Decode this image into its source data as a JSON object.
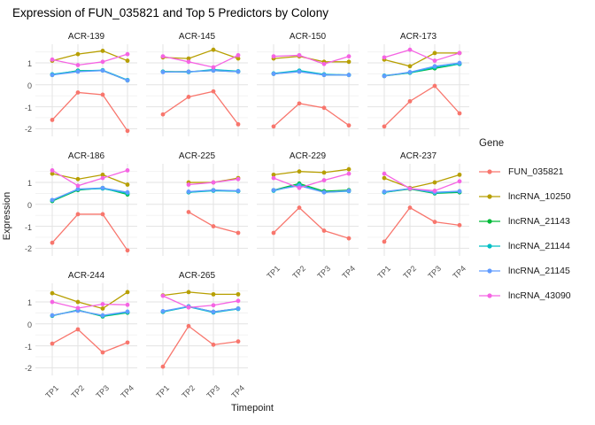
{
  "chart_data": {
    "type": "line",
    "title": "Expression of FUN_035821 and Top 5 Predictors by Colony",
    "xlabel": "Timepoint",
    "ylabel": "Expression",
    "legend_title": "Gene",
    "x": [
      "TP1",
      "TP2",
      "TP3",
      "TP4"
    ],
    "yticks": [
      1,
      0,
      -1,
      -2
    ],
    "ylim": [
      -2.35,
      1.85
    ],
    "grid": "on",
    "legend_position": "right",
    "series": [
      {
        "name": "FUN_035821",
        "color": "#F8766D"
      },
      {
        "name": "lncRNA_10250",
        "color": "#B79F00"
      },
      {
        "name": "lncRNA_21143",
        "color": "#00BA38"
      },
      {
        "name": "lncRNA_21144",
        "color": "#00BFC4"
      },
      {
        "name": "lncRNA_21145",
        "color": "#619CFF"
      },
      {
        "name": "lncRNA_43090",
        "color": "#F564E3"
      }
    ],
    "facets": [
      {
        "name": "ACR-139",
        "values": {
          "FUN_035821": [
            -1.6,
            -0.35,
            -0.45,
            -2.1
          ],
          "lncRNA_10250": [
            1.1,
            1.4,
            1.55,
            1.1
          ],
          "lncRNA_21143": [
            0.45,
            0.65,
            0.65,
            0.2
          ],
          "lncRNA_21144": [
            0.48,
            0.63,
            0.67,
            0.22
          ],
          "lncRNA_21145": [
            0.45,
            0.6,
            0.65,
            0.2
          ],
          "lncRNA_43090": [
            1.15,
            0.9,
            1.05,
            1.4
          ]
        }
      },
      {
        "name": "ACR-145",
        "values": {
          "FUN_035821": [
            -1.35,
            -0.55,
            -0.3,
            -1.8
          ],
          "lncRNA_10250": [
            1.25,
            1.2,
            1.6,
            1.2
          ],
          "lncRNA_21143": [
            0.6,
            0.6,
            0.65,
            0.6
          ],
          "lncRNA_21144": [
            0.6,
            0.58,
            0.7,
            0.62
          ],
          "lncRNA_21145": [
            0.58,
            0.6,
            0.65,
            0.6
          ],
          "lncRNA_43090": [
            1.3,
            1.05,
            0.8,
            1.35
          ]
        }
      },
      {
        "name": "ACR-150",
        "values": {
          "FUN_035821": [
            -1.9,
            -0.85,
            -1.05,
            -1.85
          ],
          "lncRNA_10250": [
            1.2,
            1.3,
            1.05,
            1.05
          ],
          "lncRNA_21143": [
            0.5,
            0.62,
            0.45,
            0.45
          ],
          "lncRNA_21144": [
            0.52,
            0.65,
            0.48,
            0.45
          ],
          "lncRNA_21145": [
            0.5,
            0.6,
            0.45,
            0.45
          ],
          "lncRNA_43090": [
            1.3,
            1.35,
            0.95,
            1.3
          ]
        }
      },
      {
        "name": "ACR-173",
        "values": {
          "FUN_035821": [
            -1.9,
            -0.75,
            -0.05,
            -1.3
          ],
          "lncRNA_10250": [
            1.15,
            0.85,
            1.45,
            1.45
          ],
          "lncRNA_21143": [
            0.4,
            0.55,
            0.75,
            0.95
          ],
          "lncRNA_21144": [
            0.42,
            0.55,
            0.8,
            0.95
          ],
          "lncRNA_21145": [
            0.4,
            0.58,
            0.85,
            1.0
          ],
          "lncRNA_43090": [
            1.25,
            1.6,
            1.1,
            1.45
          ]
        }
      },
      {
        "name": "ACR-186",
        "values": {
          "FUN_035821": [
            -1.75,
            -0.45,
            -0.45,
            -2.1
          ],
          "lncRNA_10250": [
            1.4,
            1.15,
            1.35,
            0.9
          ],
          "lncRNA_21143": [
            0.15,
            0.65,
            0.75,
            0.45
          ],
          "lncRNA_21144": [
            0.18,
            0.68,
            0.72,
            0.5
          ],
          "lncRNA_21145": [
            0.2,
            0.7,
            0.75,
            0.55
          ],
          "lncRNA_43090": [
            1.55,
            0.85,
            1.2,
            1.55
          ]
        }
      },
      {
        "name": "ACR-225",
        "values": {
          "FUN_035821": [
            null,
            -0.35,
            -1.0,
            -1.3
          ],
          "lncRNA_10250": [
            null,
            1.0,
            1.0,
            1.2
          ],
          "lncRNA_21143": [
            null,
            0.55,
            0.65,
            0.6
          ],
          "lncRNA_21144": [
            null,
            0.55,
            0.62,
            0.6
          ],
          "lncRNA_21145": [
            null,
            0.58,
            0.65,
            0.62
          ],
          "lncRNA_43090": [
            null,
            0.9,
            1.0,
            1.15
          ]
        }
      },
      {
        "name": "ACR-229",
        "values": {
          "FUN_035821": [
            -1.3,
            -0.15,
            -1.2,
            -1.55
          ],
          "lncRNA_10250": [
            1.35,
            1.5,
            1.45,
            1.6
          ],
          "lncRNA_21143": [
            0.65,
            0.95,
            0.6,
            0.65
          ],
          "lncRNA_21144": [
            0.62,
            0.9,
            0.55,
            0.6
          ],
          "lncRNA_21145": [
            0.65,
            0.85,
            0.55,
            0.62
          ],
          "lncRNA_43090": [
            1.2,
            0.75,
            1.1,
            1.4
          ]
        }
      },
      {
        "name": "ACR-237",
        "values": {
          "FUN_035821": [
            -1.7,
            -0.15,
            -0.8,
            -0.95
          ],
          "lncRNA_10250": [
            1.2,
            0.75,
            1.0,
            1.35
          ],
          "lncRNA_21143": [
            0.55,
            0.7,
            0.5,
            0.55
          ],
          "lncRNA_21144": [
            0.55,
            0.72,
            0.52,
            0.58
          ],
          "lncRNA_21145": [
            0.58,
            0.72,
            0.55,
            0.6
          ],
          "lncRNA_43090": [
            1.4,
            0.72,
            0.62,
            1.05
          ]
        }
      },
      {
        "name": "ACR-244",
        "values": {
          "FUN_035821": [
            -0.9,
            -0.25,
            -1.3,
            -0.85
          ],
          "lncRNA_10250": [
            1.4,
            1.0,
            0.7,
            1.45
          ],
          "lncRNA_21143": [
            0.37,
            0.63,
            0.34,
            0.51
          ],
          "lncRNA_21144": [
            0.38,
            0.62,
            0.36,
            0.53
          ],
          "lncRNA_21145": [
            0.39,
            0.6,
            0.39,
            0.56
          ],
          "lncRNA_43090": [
            1.0,
            0.72,
            0.9,
            0.87
          ]
        }
      },
      {
        "name": "ACR-265",
        "values": {
          "FUN_035821": [
            -1.95,
            -0.1,
            -0.95,
            -0.8
          ],
          "lncRNA_10250": [
            1.3,
            1.45,
            1.35,
            1.35
          ],
          "lncRNA_21143": [
            0.55,
            0.8,
            0.55,
            0.7
          ],
          "lncRNA_21144": [
            0.55,
            0.78,
            0.52,
            0.68
          ],
          "lncRNA_21145": [
            0.58,
            0.8,
            0.55,
            0.7
          ],
          "lncRNA_43090": [
            1.28,
            0.75,
            0.85,
            1.05
          ]
        }
      }
    ]
  }
}
